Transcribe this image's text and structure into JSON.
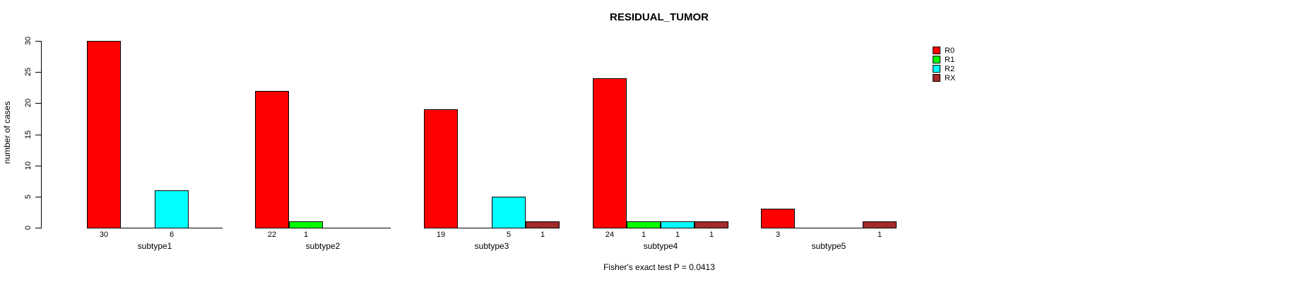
{
  "chart_data": {
    "type": "bar",
    "title": "RESIDUAL_TUMOR",
    "ylabel": "number of cases",
    "xlabel": "",
    "categories": [
      "subtype1",
      "subtype2",
      "subtype3",
      "subtype4",
      "subtype5"
    ],
    "series": [
      {
        "name": "R0",
        "color": "#FF0000",
        "values": [
          30,
          22,
          19,
          24,
          3
        ]
      },
      {
        "name": "R1",
        "color": "#00FF00",
        "values": [
          0,
          1,
          0,
          1,
          0
        ]
      },
      {
        "name": "R2",
        "color": "#00FFFF",
        "values": [
          6,
          0,
          5,
          1,
          0
        ]
      },
      {
        "name": "RX",
        "color": "#A52A2A",
        "values": [
          0,
          0,
          1,
          1,
          1
        ]
      }
    ],
    "yticks": [
      0,
      5,
      10,
      15,
      20,
      25,
      30
    ],
    "ylim": [
      0,
      30
    ],
    "grid": false,
    "bar_labels_shown": true,
    "legend_position": "top-right",
    "legend_labels": [
      "R0",
      "R1",
      "R2",
      "RX"
    ],
    "annotation": "Fisher's exact test P = 0.0413"
  }
}
